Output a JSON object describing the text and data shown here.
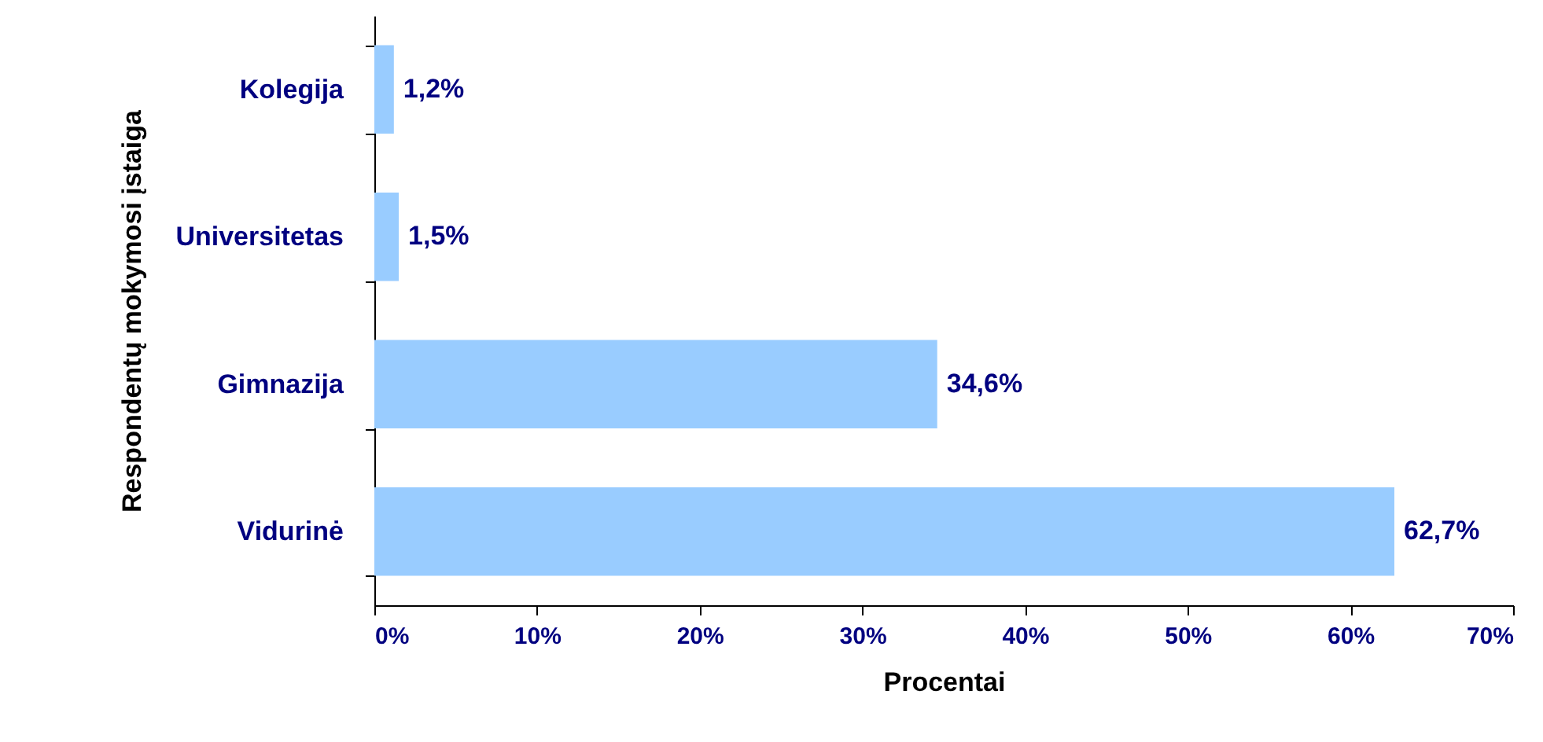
{
  "chart_data": {
    "type": "bar",
    "orientation": "horizontal",
    "xlabel": "Procentai",
    "ylabel": "Respondentų mokymosi įstaiga",
    "categories": [
      "Kolegija",
      "Universitetas",
      "Gimnazija",
      "Vidurinė"
    ],
    "values": [
      1.2,
      1.5,
      34.6,
      62.7
    ],
    "value_labels": [
      "1,2%",
      "1,5%",
      "34,6%",
      "62,7%"
    ],
    "color": "#99ccff",
    "xlim": [
      0,
      70
    ],
    "xticks": [
      {
        "value": 0,
        "label": "0%"
      },
      {
        "value": 10,
        "label": "10%"
      },
      {
        "value": 20,
        "label": "20%"
      },
      {
        "value": 30,
        "label": "30%"
      },
      {
        "value": 40,
        "label": "40%"
      },
      {
        "value": 50,
        "label": "50%"
      },
      {
        "value": 60,
        "label": "60%"
      },
      {
        "value": 70,
        "label": "70%"
      }
    ],
    "grid": false
  }
}
